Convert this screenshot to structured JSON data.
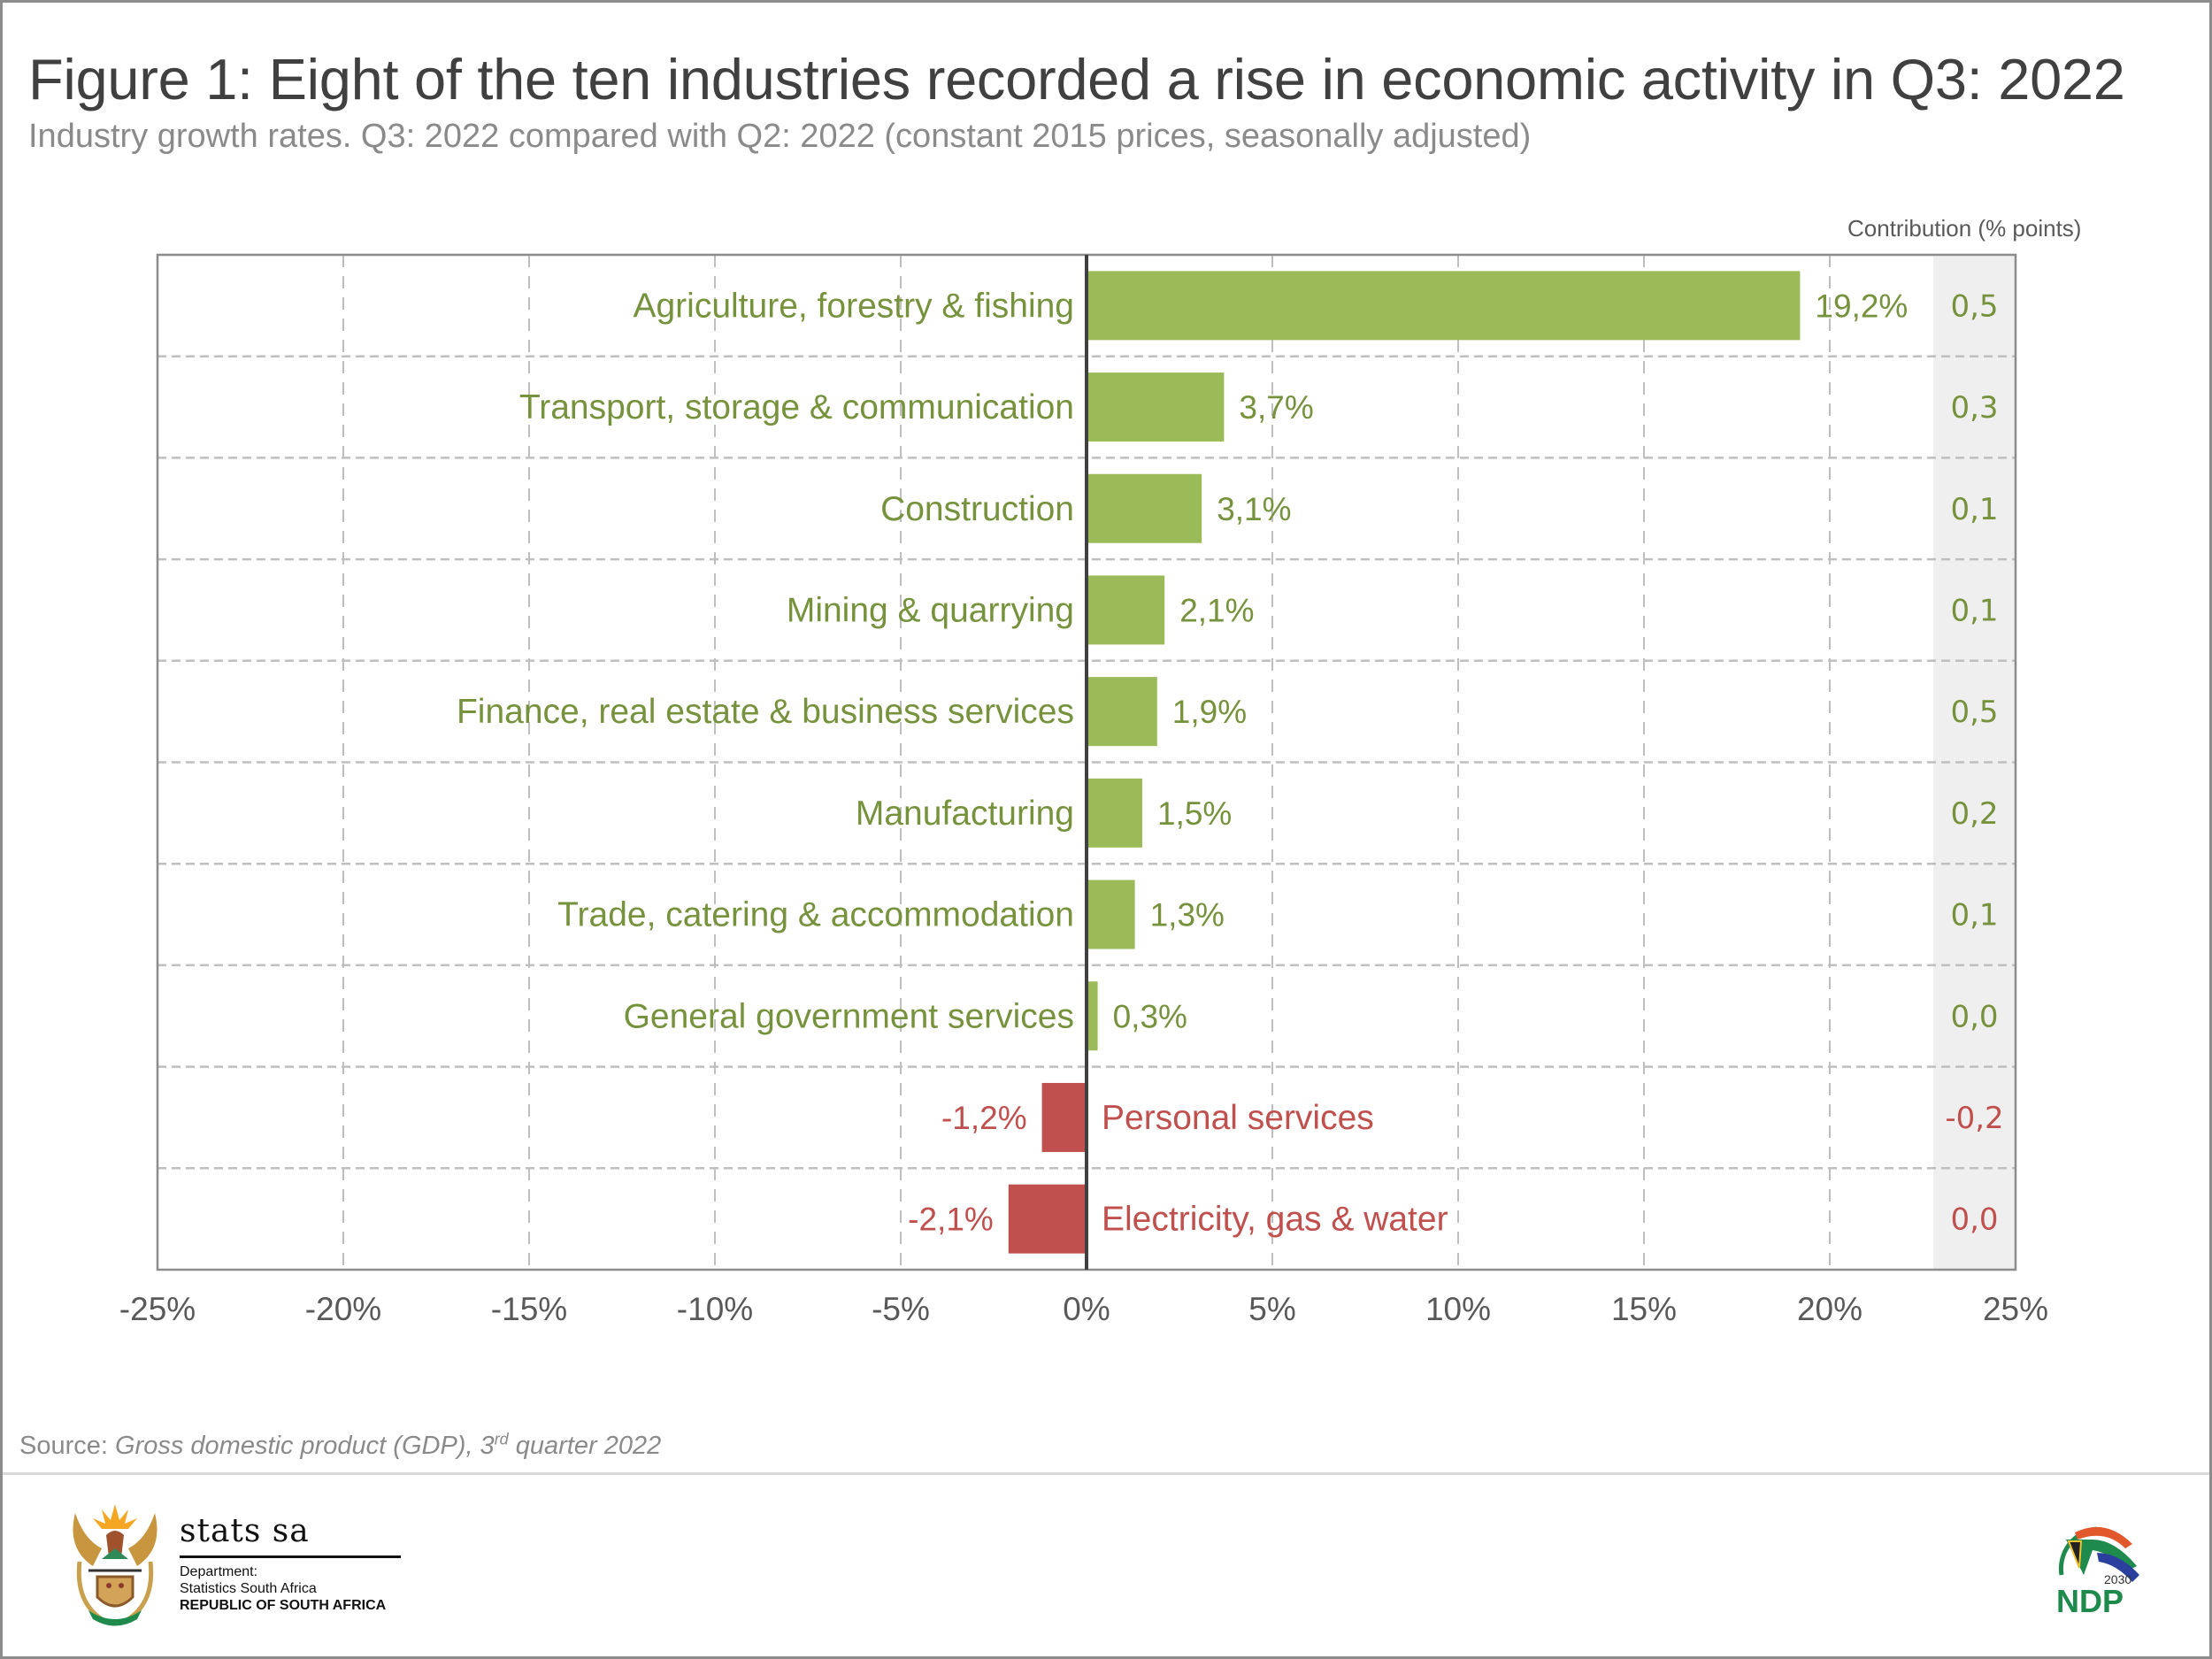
{
  "header": {
    "title": "Figure 1: Eight of the ten industries recorded a rise in economic activity in Q3: 2022",
    "subtitle": "Industry growth rates. Q3: 2022 compared with Q2: 2022 (constant 2015 prices, seasonally adjusted)"
  },
  "colors": {
    "positive": "#9bbb59",
    "positive_text": "#76923c",
    "negative": "#c0504d",
    "negative_text": "#c0504d",
    "axis_text": "#595959",
    "grid": "#bfbfbf",
    "contribution_band": "#efefef"
  },
  "chart_data": {
    "type": "bar",
    "orientation": "horizontal",
    "title": "Figure 1: Eight of the ten industries recorded a rise in economic activity in Q3: 2022",
    "subtitle": "Industry growth rates. Q3: 2022 compared with Q2: 2022 (constant 2015 prices, seasonally adjusted)",
    "xlabel": "",
    "ylabel": "",
    "xlim": [
      -25,
      25
    ],
    "x_ticks": [
      -25,
      -20,
      -15,
      -10,
      -5,
      0,
      5,
      10,
      15,
      20,
      25
    ],
    "x_tick_labels": [
      "-25%",
      "-20%",
      "-15%",
      "-10%",
      "-5%",
      "0%",
      "5%",
      "10%",
      "15%",
      "20%",
      "25%"
    ],
    "grid": true,
    "categories": [
      "Agriculture, forestry & fishing",
      "Transport, storage & communication",
      "Construction",
      "Mining & quarrying",
      "Finance, real estate & business services",
      "Manufacturing",
      "Trade, catering & accommodation",
      "General government services",
      "Personal services",
      "Electricity, gas & water"
    ],
    "values": [
      19.2,
      3.7,
      3.1,
      2.1,
      1.9,
      1.5,
      1.3,
      0.3,
      -1.2,
      -2.1
    ],
    "value_labels": [
      "19,2%",
      "3,7%",
      "3,1%",
      "2,1%",
      "1,9%",
      "1,5%",
      "1,3%",
      "0,3%",
      "-1,2%",
      "-2,1%"
    ],
    "contribution_header": "Contribution (% points)",
    "contributions": [
      0.5,
      0.3,
      0.1,
      0.1,
      0.5,
      0.2,
      0.1,
      0.0,
      -0.2,
      0.0
    ],
    "contribution_labels": [
      "0,5",
      "0,3",
      "0,1",
      "0,1",
      "0,5",
      "0,2",
      "0,1",
      "0,0",
      "-0,2",
      "0,0"
    ]
  },
  "footer": {
    "source_prefix": "Source: ",
    "source_title": "Gross domestic product (GDP), 3",
    "source_sup": "rd",
    "source_suffix": " quarter 2022",
    "logo_left": {
      "name": "stats sa",
      "line1": "Department:",
      "line2": "Statistics South Africa",
      "line3": "REPUBLIC OF SOUTH AFRICA"
    },
    "logo_right": {
      "year": "2030",
      "name": "NDP"
    }
  }
}
